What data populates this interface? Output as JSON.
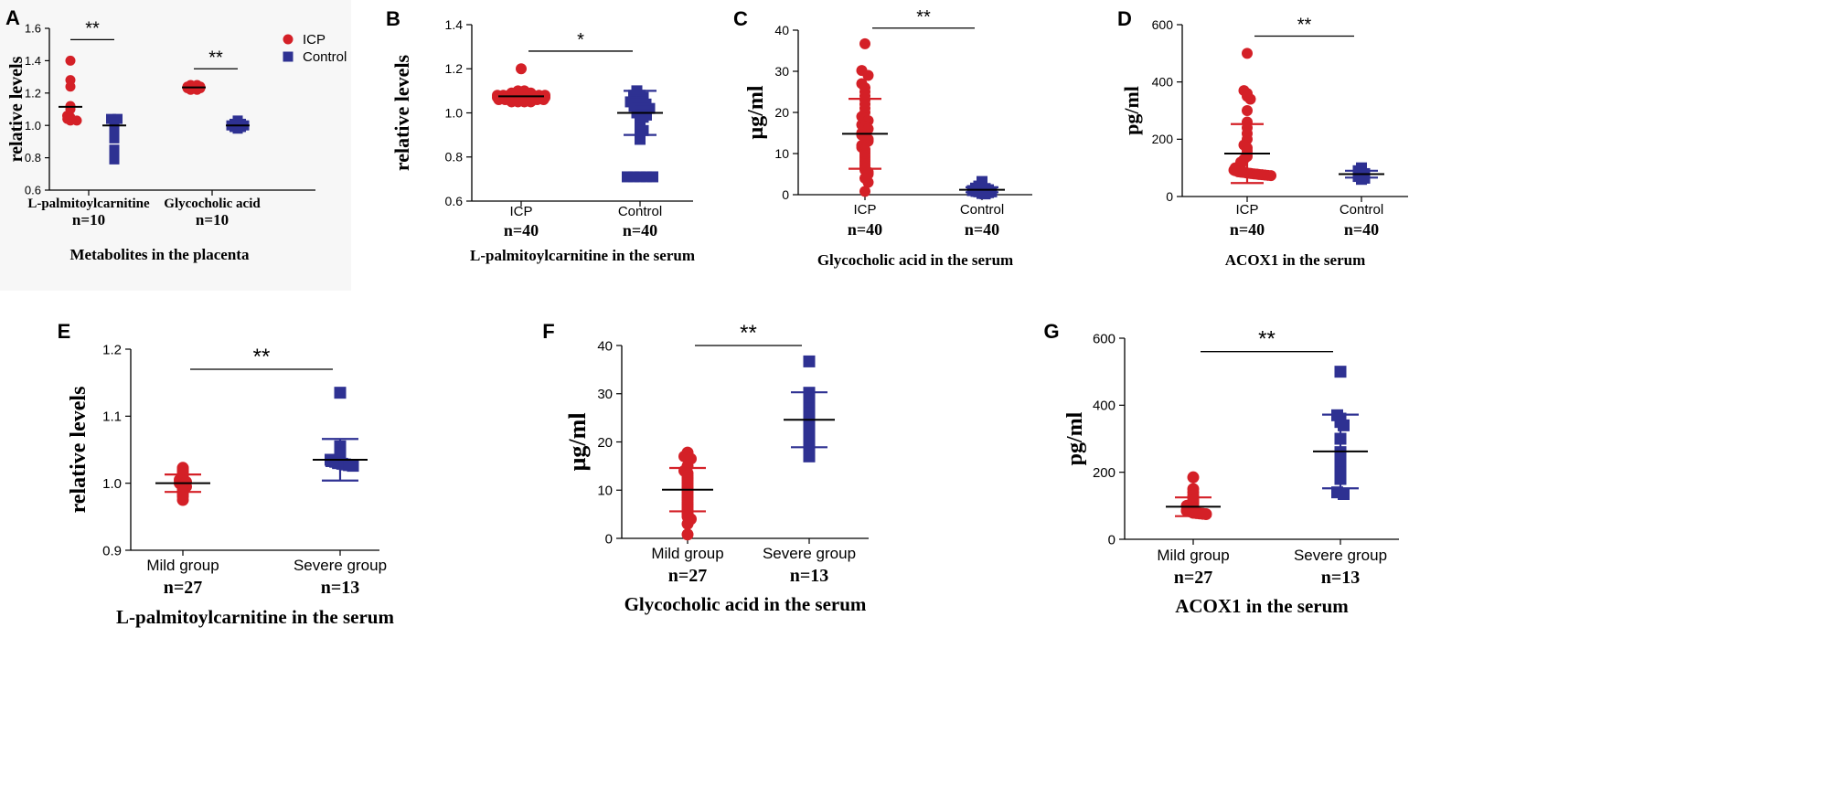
{
  "colors": {
    "icp": "#d42027",
    "control": "#2e3192",
    "axis": "#000000",
    "panel_a_bg": "#f7f7f7"
  },
  "legend": {
    "icp_label": "ICP",
    "control_label": "Control"
  },
  "chart_data": [
    {
      "id": "A",
      "letter": "A",
      "type": "scatter",
      "ylabel": "relative levels",
      "xlabel": "Metabolites in the placenta",
      "ylim": [
        0.6,
        1.6
      ],
      "yticks": [
        "0.6",
        "0.8",
        "1.0",
        "1.2",
        "1.4",
        "1.6"
      ],
      "groups": [
        {
          "category": "L-palmitoylcarnitine",
          "n": "n=10"
        },
        {
          "category": "Glycocholic acid",
          "n": "n=10"
        }
      ],
      "series": [
        {
          "name": "ICP",
          "group": 0,
          "mean": 1.115,
          "sd": null,
          "values": [
            1.4,
            1.28,
            1.24,
            1.12,
            1.1,
            1.06,
            1.05,
            1.04,
            1.03,
            1.03
          ]
        },
        {
          "name": "Control",
          "group": 0,
          "mean": 1.0,
          "sd": null,
          "values": [
            1.04,
            1.04,
            1.03,
            1.02,
            1.01,
            1.0,
            0.98,
            0.92,
            0.85,
            0.79
          ]
        },
        {
          "name": "ICP",
          "group": 1,
          "mean": 1.235,
          "sd": null,
          "values": [
            1.25,
            1.25,
            1.24,
            1.24,
            1.23,
            1.23,
            1.22,
            1.22,
            1.24,
            1.23
          ]
        },
        {
          "name": "Control",
          "group": 1,
          "mean": 1.0,
          "sd": null,
          "values": [
            1.03,
            1.02,
            1.01,
            1.01,
            1.0,
            1.0,
            0.99,
            0.99,
            0.98,
            1.0
          ]
        }
      ],
      "significance": [
        {
          "from_series": 0,
          "to_series": 1,
          "label": "**",
          "y": 1.53
        },
        {
          "from_series": 2,
          "to_series": 3,
          "label": "**",
          "y": 1.35
        }
      ],
      "legend_position": "top-right"
    },
    {
      "id": "B",
      "letter": "B",
      "type": "scatter",
      "ylabel": "relative levels",
      "xlabel": "L-palmitoylcarnitine in the serum",
      "ylim": [
        0.6,
        1.4
      ],
      "yticks": [
        "0.6",
        "0.8",
        "1.0",
        "1.2",
        "1.4"
      ],
      "groups": [
        {
          "category": "ICP",
          "n": "n=40"
        },
        {
          "category": "Control",
          "n": "n=40"
        }
      ],
      "series": [
        {
          "name": "ICP",
          "group": 0,
          "mean": 1.075,
          "sd": 0.012,
          "values": [
            1.2,
            1.1,
            1.1,
            1.09,
            1.09,
            1.09,
            1.09,
            1.08,
            1.08,
            1.08,
            1.08,
            1.08,
            1.08,
            1.08,
            1.08,
            1.08,
            1.07,
            1.07,
            1.07,
            1.07,
            1.07,
            1.07,
            1.07,
            1.07,
            1.07,
            1.07,
            1.07,
            1.07,
            1.06,
            1.06,
            1.06,
            1.06,
            1.06,
            1.06,
            1.06,
            1.06,
            1.05,
            1.05,
            1.05,
            1.05
          ]
        },
        {
          "name": "Control",
          "group": 1,
          "mean": 1.0,
          "sd": 0.1,
          "values": [
            1.1,
            1.09,
            1.08,
            1.08,
            1.07,
            1.07,
            1.06,
            1.06,
            1.05,
            1.05,
            1.05,
            1.04,
            1.04,
            1.04,
            1.03,
            1.03,
            1.03,
            1.02,
            1.02,
            1.02,
            1.01,
            1.01,
            1.0,
            1.0,
            0.99,
            0.99,
            0.98,
            0.97,
            0.96,
            0.95,
            0.94,
            0.93,
            0.92,
            0.9,
            0.88,
            0.71,
            0.71,
            0.71,
            0.71,
            0.71
          ]
        }
      ],
      "significance": [
        {
          "from_series": 0,
          "to_series": 1,
          "label": "*",
          "y": 1.28
        }
      ]
    },
    {
      "id": "C",
      "letter": "C",
      "type": "scatter",
      "ylabel": "µg/ml",
      "xlabel": "Glycocholic acid in the serum",
      "ylim": [
        0,
        40
      ],
      "yticks": [
        "0",
        "10",
        "20",
        "30",
        "40"
      ],
      "groups": [
        {
          "category": "ICP",
          "n": "n=40"
        },
        {
          "category": "Control",
          "n": "n=40"
        }
      ],
      "series": [
        {
          "name": "ICP",
          "group": 0,
          "mean": 14.8,
          "sd": 8.5,
          "values": [
            36.7,
            30.2,
            29.0,
            27.0,
            26.0,
            25.0,
            24.0,
            23.0,
            22.0,
            21.0,
            20.0,
            19.0,
            18.5,
            18.0,
            17.0,
            16.5,
            16.0,
            15.0,
            14.5,
            14.0,
            13.5,
            13.0,
            12.0,
            11.5,
            11.0,
            10.5,
            10.0,
            9.5,
            9.0,
            8.5,
            8.0,
            7.5,
            7.0,
            6.5,
            6.0,
            5.5,
            5.0,
            4.0,
            3.0,
            0.8
          ]
        },
        {
          "name": "Control",
          "group": 1,
          "mean": 1.2,
          "sd": 0.6,
          "values": [
            3.2,
            2.5,
            2.3,
            2.1,
            2.0,
            1.9,
            1.8,
            1.7,
            1.6,
            1.6,
            1.5,
            1.5,
            1.4,
            1.4,
            1.3,
            1.3,
            1.2,
            1.2,
            1.2,
            1.1,
            1.1,
            1.0,
            1.0,
            1.0,
            0.9,
            0.9,
            0.9,
            0.8,
            0.8,
            0.8,
            0.7,
            0.7,
            0.7,
            0.6,
            0.6,
            0.5,
            0.5,
            0.4,
            0.3,
            0.2
          ]
        }
      ],
      "significance": [
        {
          "from_series": 0,
          "to_series": 1,
          "label": "**",
          "y": 40.5
        }
      ]
    },
    {
      "id": "D",
      "letter": "D",
      "type": "scatter",
      "ylabel": "pg/ml",
      "xlabel": "ACOX1 in the serum",
      "ylim": [
        0,
        600
      ],
      "yticks": [
        "0",
        "200",
        "400",
        "600"
      ],
      "groups": [
        {
          "category": "ICP",
          "n": "n=40"
        },
        {
          "category": "Control",
          "n": "n=40"
        }
      ],
      "series": [
        {
          "name": "ICP",
          "group": 0,
          "mean": 150,
          "sd": 103,
          "values": [
            500,
            370,
            360,
            350,
            340,
            300,
            260,
            240,
            220,
            200,
            180,
            170,
            160,
            150,
            140,
            130,
            120,
            115,
            110,
            105,
            100,
            98,
            95,
            92,
            90,
            88,
            86,
            85,
            84,
            83,
            82,
            81,
            80,
            79,
            78,
            77,
            76,
            75,
            74,
            73
          ]
        },
        {
          "name": "Control",
          "group": 1,
          "mean": 78,
          "sd": 12,
          "values": [
            100,
            98,
            96,
            94,
            92,
            90,
            89,
            88,
            87,
            86,
            85,
            84,
            83,
            82,
            81,
            80,
            80,
            79,
            78,
            78,
            77,
            76,
            76,
            75,
            74,
            74,
            73,
            72,
            72,
            71,
            70,
            70,
            69,
            68,
            67,
            66,
            65,
            64,
            62,
            60
          ]
        }
      ],
      "significance": [
        {
          "from_series": 0,
          "to_series": 1,
          "label": "**",
          "y": 560
        }
      ]
    },
    {
      "id": "E",
      "letter": "E",
      "type": "scatter",
      "ylabel": "relative levels",
      "xlabel": "L-palmitoylcarnitine in the serum",
      "ylim": [
        0.9,
        1.2
      ],
      "yticks": [
        "0.9",
        "1.0",
        "1.1",
        "1.2"
      ],
      "groups": [
        {
          "category": "Mild group",
          "n": "n=27"
        },
        {
          "category": "Severe group",
          "n": "n=13"
        }
      ],
      "series": [
        {
          "name": "ICP",
          "group": 0,
          "mean": 1.0,
          "sd": 0.013,
          "values": [
            1.023,
            1.021,
            1.019,
            1.017,
            1.015,
            1.013,
            1.011,
            1.009,
            1.007,
            1.005,
            1.004,
            1.003,
            1.002,
            1.0,
            0.999,
            0.998,
            0.997,
            0.996,
            0.995,
            0.993,
            0.991,
            0.989,
            0.987,
            0.985,
            0.983,
            0.98,
            0.975
          ]
        },
        {
          "name": "Control",
          "group": 1,
          "mean": 1.035,
          "sd": 0.031,
          "values": [
            1.135,
            1.055,
            1.045,
            1.04,
            1.035,
            1.033,
            1.032,
            1.031,
            1.03,
            1.029,
            1.028,
            1.027,
            1.026
          ]
        }
      ],
      "significance": [
        {
          "from_series": 0,
          "to_series": 1,
          "label": "**",
          "y": 1.17
        }
      ]
    },
    {
      "id": "F",
      "letter": "F",
      "type": "scatter",
      "ylabel": "µg/ml",
      "xlabel": "Glycocholic acid in the serum",
      "ylim": [
        0,
        40
      ],
      "yticks": [
        "0",
        "10",
        "20",
        "30",
        "40"
      ],
      "groups": [
        {
          "category": "Mild group",
          "n": "n=27"
        },
        {
          "category": "Severe group",
          "n": "n=13"
        }
      ],
      "series": [
        {
          "name": "ICP",
          "group": 0,
          "mean": 10.1,
          "sd": 4.5,
          "values": [
            17.8,
            17.0,
            16.5,
            15.0,
            14.0,
            13.5,
            13.0,
            12.5,
            12.0,
            11.5,
            11.0,
            10.5,
            10.0,
            9.5,
            9.0,
            8.5,
            8.0,
            7.5,
            7.0,
            6.5,
            6.0,
            5.5,
            5.0,
            4.5,
            4.0,
            3.0,
            0.8
          ]
        },
        {
          "name": "Control",
          "group": 1,
          "mean": 24.6,
          "sd": 5.7,
          "values": [
            36.7,
            30.2,
            29.0,
            27.0,
            26.0,
            25.0,
            24.0,
            23.0,
            22.0,
            21.0,
            19.0,
            18.0,
            17.0
          ]
        }
      ],
      "significance": [
        {
          "from_series": 0,
          "to_series": 1,
          "label": "**",
          "y": 40
        }
      ]
    },
    {
      "id": "G",
      "letter": "G",
      "type": "scatter",
      "ylabel": "pg/ml",
      "xlabel": "ACOX1 in the serum",
      "ylim": [
        0,
        600
      ],
      "yticks": [
        "0",
        "200",
        "400",
        "600"
      ],
      "groups": [
        {
          "category": "Mild group",
          "n": "n=27"
        },
        {
          "category": "Severe group",
          "n": "n=13"
        }
      ],
      "series": [
        {
          "name": "ICP",
          "group": 0,
          "mean": 97,
          "sd": 28,
          "values": [
            185,
            150,
            140,
            130,
            120,
            115,
            110,
            105,
            100,
            98,
            96,
            94,
            92,
            90,
            88,
            86,
            85,
            84,
            83,
            82,
            81,
            80,
            79,
            78,
            77,
            76,
            75
          ]
        },
        {
          "name": "Control",
          "group": 1,
          "mean": 262,
          "sd": 110,
          "values": [
            500,
            370,
            360,
            350,
            340,
            300,
            260,
            240,
            220,
            200,
            180,
            140,
            135
          ]
        }
      ],
      "significance": [
        {
          "from_series": 0,
          "to_series": 1,
          "label": "**",
          "y": 560
        }
      ]
    }
  ]
}
